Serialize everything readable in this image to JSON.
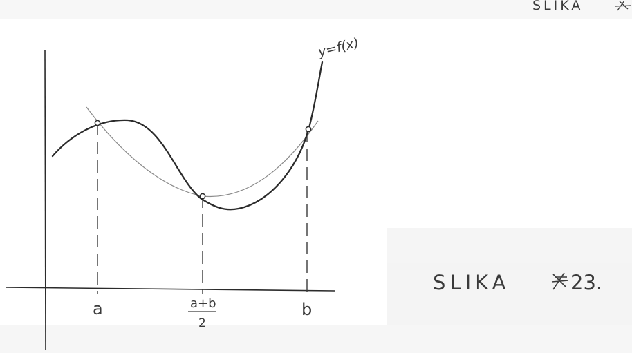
{
  "colors": {
    "paper": "#ffffff",
    "ink": "#2b2b2b",
    "faint_ink": "#8a8a8a",
    "scan_gray": "#e9e9e9"
  },
  "labels": {
    "curve": "y=f(x)",
    "point_a": "a",
    "point_mid_top": "a+b",
    "point_mid_bottom": "2",
    "point_b": "b",
    "caption_top": "SLIKA",
    "caption_main": "SLIKA",
    "caption_number": "23."
  }
}
